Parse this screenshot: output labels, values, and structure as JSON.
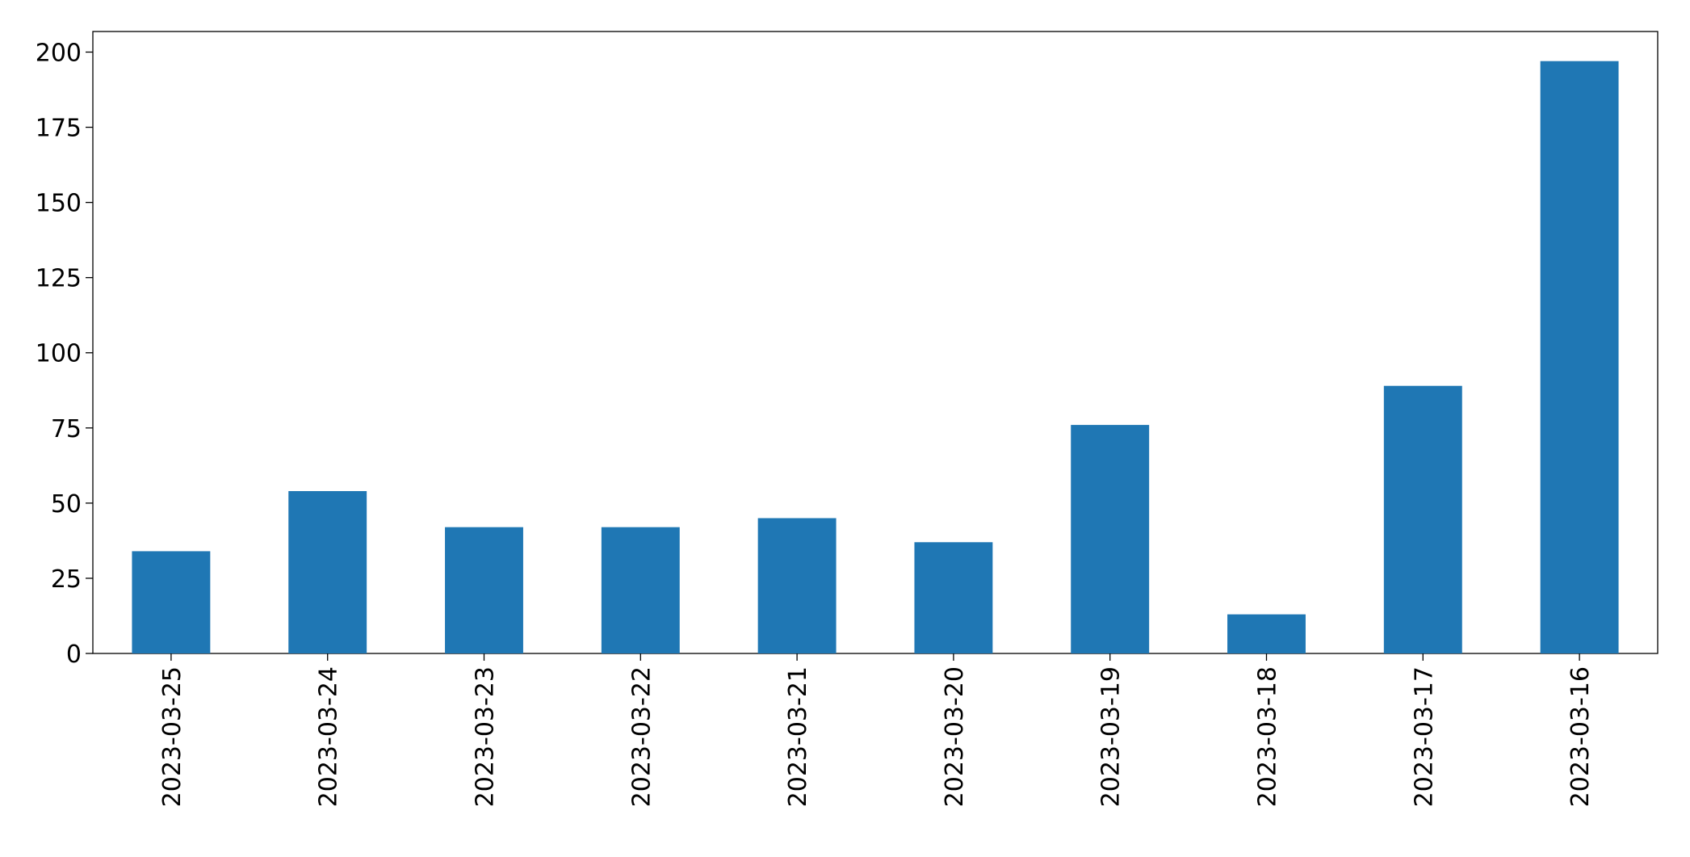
{
  "chart_data": {
    "type": "bar",
    "categories": [
      "2023-03-25",
      "2023-03-24",
      "2023-03-23",
      "2023-03-22",
      "2023-03-21",
      "2023-03-20",
      "2023-03-19",
      "2023-03-18",
      "2023-03-17",
      "2023-03-16"
    ],
    "values": [
      34,
      54,
      42,
      42,
      45,
      37,
      76,
      13,
      89,
      197
    ],
    "color": "#1f77b4",
    "ylim": [
      0,
      206.85
    ],
    "yticks": [
      0,
      25,
      50,
      75,
      100,
      125,
      150,
      175,
      200
    ],
    "grid": false
  }
}
